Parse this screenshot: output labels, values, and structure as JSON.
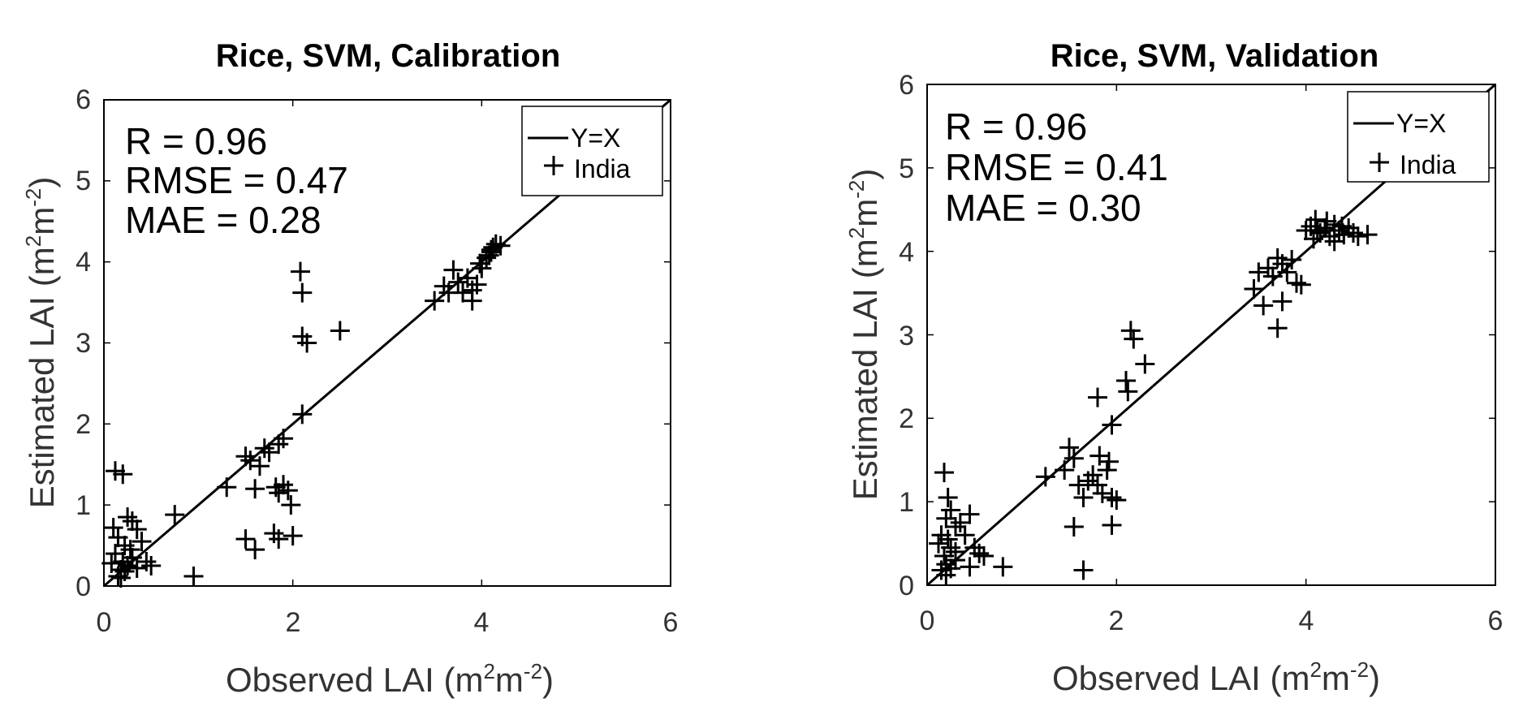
{
  "chart_data": [
    {
      "type": "scatter",
      "title": "Rice, SVM, Calibration",
      "xlabel": "Observed LAI",
      "ylabel": "Estimated LAI",
      "unit": {
        "base": "(m",
        "sup1": "2",
        "mid": "m",
        "sup2": "-2",
        "end": ")"
      },
      "xlim": [
        0,
        6
      ],
      "ylim": [
        0,
        6
      ],
      "xticks": [
        "0",
        "2",
        "4",
        "6"
      ],
      "yticks": [
        "0",
        "1",
        "2",
        "3",
        "4",
        "5",
        "6"
      ],
      "stats": [
        "R = 0.96",
        "RMSE = 0.47",
        "MAE = 0.28"
      ],
      "legend": [
        "Y=X",
        "India"
      ],
      "reference_line": "Y=X",
      "series": [
        {
          "name": "India",
          "marker": "+",
          "points": [
            [
              0.12,
              1.42
            ],
            [
              0.2,
              1.38
            ],
            [
              0.1,
              0.72
            ],
            [
              0.15,
              0.6
            ],
            [
              0.22,
              0.5
            ],
            [
              0.3,
              0.8
            ],
            [
              0.35,
              0.7
            ],
            [
              0.25,
              0.85
            ],
            [
              0.2,
              0.3
            ],
            [
              0.25,
              0.25
            ],
            [
              0.18,
              0.2
            ],
            [
              0.15,
              0.12
            ],
            [
              0.22,
              0.18
            ],
            [
              0.3,
              0.35
            ],
            [
              0.12,
              0.4
            ],
            [
              0.4,
              0.55
            ],
            [
              0.45,
              0.3
            ],
            [
              0.35,
              0.22
            ],
            [
              0.5,
              0.25
            ],
            [
              0.28,
              0.45
            ],
            [
              0.08,
              0.28
            ],
            [
              0.18,
              0.1
            ],
            [
              0.75,
              0.88
            ],
            [
              0.95,
              0.12
            ],
            [
              1.3,
              1.22
            ],
            [
              1.5,
              1.6
            ],
            [
              1.55,
              1.55
            ],
            [
              1.6,
              1.2
            ],
            [
              1.65,
              1.48
            ],
            [
              1.7,
              1.7
            ],
            [
              1.75,
              1.65
            ],
            [
              1.85,
              1.75
            ],
            [
              1.9,
              1.82
            ],
            [
              1.82,
              1.22
            ],
            [
              1.85,
              1.15
            ],
            [
              1.9,
              1.25
            ],
            [
              1.95,
              1.18
            ],
            [
              1.98,
              1.0
            ],
            [
              1.5,
              0.58
            ],
            [
              1.6,
              0.45
            ],
            [
              1.8,
              0.65
            ],
            [
              1.85,
              0.58
            ],
            [
              2.0,
              0.62
            ],
            [
              2.1,
              2.12
            ],
            [
              2.08,
              3.88
            ],
            [
              2.1,
              3.62
            ],
            [
              2.1,
              3.08
            ],
            [
              2.15,
              3.0
            ],
            [
              2.5,
              3.15
            ],
            [
              3.5,
              3.52
            ],
            [
              3.6,
              3.7
            ],
            [
              3.65,
              3.62
            ],
            [
              3.7,
              3.9
            ],
            [
              3.75,
              3.75
            ],
            [
              3.8,
              3.62
            ],
            [
              3.85,
              3.8
            ],
            [
              3.9,
              3.65
            ],
            [
              3.9,
              3.52
            ],
            [
              3.95,
              3.72
            ],
            [
              4.0,
              3.92
            ],
            [
              4.05,
              4.05
            ],
            [
              4.1,
              4.12
            ],
            [
              4.12,
              4.18
            ],
            [
              4.15,
              4.22
            ],
            [
              4.1,
              4.15
            ],
            [
              4.2,
              4.2
            ],
            [
              4.08,
              4.08
            ],
            [
              3.98,
              3.98
            ]
          ]
        }
      ]
    },
    {
      "type": "scatter",
      "title": "Rice, SVM, Validation",
      "xlabel": "Observed LAI",
      "ylabel": "Estimated LAI",
      "unit": {
        "base": "(m",
        "sup1": "2",
        "mid": "m",
        "sup2": "-2",
        "end": ")"
      },
      "xlim": [
        0,
        6
      ],
      "ylim": [
        0,
        6
      ],
      "xticks": [
        "0",
        "2",
        "4",
        "6"
      ],
      "yticks": [
        "0",
        "1",
        "2",
        "3",
        "4",
        "5",
        "6"
      ],
      "stats": [
        "R = 0.96",
        "RMSE = 0.41",
        "MAE = 0.30"
      ],
      "legend": [
        "Y=X",
        "India"
      ],
      "reference_line": "Y=X",
      "series": [
        {
          "name": "India",
          "marker": "+",
          "points": [
            [
              0.18,
              1.35
            ],
            [
              0.22,
              1.05
            ],
            [
              0.25,
              0.9
            ],
            [
              0.2,
              0.8
            ],
            [
              0.3,
              0.7
            ],
            [
              0.15,
              0.6
            ],
            [
              0.22,
              0.55
            ],
            [
              0.35,
              0.75
            ],
            [
              0.4,
              0.6
            ],
            [
              0.45,
              0.85
            ],
            [
              0.25,
              0.45
            ],
            [
              0.3,
              0.4
            ],
            [
              0.18,
              0.35
            ],
            [
              0.12,
              0.5
            ],
            [
              0.2,
              0.25
            ],
            [
              0.25,
              0.2
            ],
            [
              0.15,
              0.18
            ],
            [
              0.3,
              0.3
            ],
            [
              0.5,
              0.45
            ],
            [
              0.55,
              0.38
            ],
            [
              0.45,
              0.22
            ],
            [
              0.2,
              0.12
            ],
            [
              0.6,
              0.35
            ],
            [
              0.8,
              0.22
            ],
            [
              1.25,
              1.3
            ],
            [
              1.45,
              1.38
            ],
            [
              1.5,
              1.65
            ],
            [
              1.55,
              1.52
            ],
            [
              1.6,
              1.2
            ],
            [
              1.65,
              1.05
            ],
            [
              1.7,
              1.25
            ],
            [
              1.75,
              1.32
            ],
            [
              1.8,
              1.2
            ],
            [
              1.82,
              1.55
            ],
            [
              1.85,
              1.1
            ],
            [
              1.9,
              1.38
            ],
            [
              1.92,
              1.48
            ],
            [
              1.95,
              1.05
            ],
            [
              2.0,
              1.02
            ],
            [
              1.95,
              1.92
            ],
            [
              1.8,
              2.25
            ],
            [
              1.55,
              0.7
            ],
            [
              1.95,
              0.72
            ],
            [
              1.65,
              0.18
            ],
            [
              2.1,
              2.45
            ],
            [
              2.12,
              2.32
            ],
            [
              2.15,
              3.05
            ],
            [
              2.18,
              2.95
            ],
            [
              2.3,
              2.65
            ],
            [
              3.45,
              3.55
            ],
            [
              3.5,
              3.75
            ],
            [
              3.55,
              3.35
            ],
            [
              3.6,
              3.8
            ],
            [
              3.65,
              3.7
            ],
            [
              3.7,
              3.92
            ],
            [
              3.75,
              3.85
            ],
            [
              3.8,
              3.75
            ],
            [
              3.85,
              3.9
            ],
            [
              3.7,
              3.08
            ],
            [
              3.75,
              3.4
            ],
            [
              3.9,
              3.62
            ],
            [
              3.95,
              3.6
            ],
            [
              4.0,
              4.25
            ],
            [
              4.05,
              4.3
            ],
            [
              4.1,
              4.38
            ],
            [
              4.15,
              4.22
            ],
            [
              4.2,
              4.28
            ],
            [
              4.25,
              4.18
            ],
            [
              4.3,
              4.32
            ],
            [
              4.35,
              4.25
            ],
            [
              4.4,
              4.2
            ],
            [
              4.45,
              4.28
            ],
            [
              4.5,
              4.22
            ],
            [
              4.55,
              4.18
            ],
            [
              4.65,
              4.2
            ],
            [
              4.08,
              4.15
            ],
            [
              4.22,
              4.36
            ],
            [
              4.3,
              4.12
            ],
            [
              4.38,
              4.3
            ],
            [
              4.12,
              4.25
            ]
          ]
        }
      ]
    }
  ]
}
